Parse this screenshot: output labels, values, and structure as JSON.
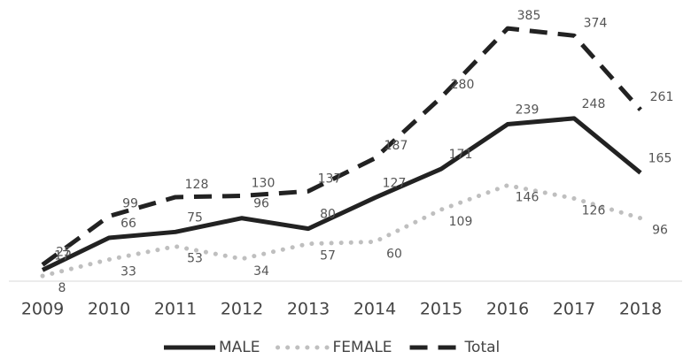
{
  "chart_data": {
    "type": "line",
    "categories": [
      "2009",
      "2010",
      "2011",
      "2012",
      "2013",
      "2014",
      "2015",
      "2016",
      "2017",
      "2018"
    ],
    "series": [
      {
        "name": "MALE",
        "color": "#222222",
        "style": "solid",
        "values": [
          17,
          66,
          75,
          96,
          80,
          127,
          171,
          239,
          248,
          165
        ]
      },
      {
        "name": "FEMALE",
        "color": "#bfbfbf",
        "style": "dotted",
        "values": [
          8,
          33,
          53,
          34,
          57,
          60,
          109,
          146,
          126,
          96
        ]
      },
      {
        "name": "Total",
        "color": "#222222",
        "style": "dashed",
        "values": [
          25,
          99,
          128,
          130,
          137,
          187,
          280,
          385,
          374,
          261
        ]
      }
    ],
    "ylim": [
      0,
      400
    ],
    "legend": "bottom"
  }
}
